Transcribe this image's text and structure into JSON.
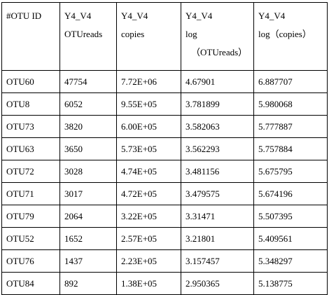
{
  "table": {
    "columns": [
      {
        "lines": [
          "#OTU ID"
        ]
      },
      {
        "lines": [
          "Y4_V4",
          "OTUreads"
        ]
      },
      {
        "lines": [
          "Y4_V4",
          "copies"
        ]
      },
      {
        "lines": [
          "Y4_V4",
          "log",
          "（OTUreads）"
        ]
      },
      {
        "lines": [
          "Y4_V4",
          "log（copies）"
        ]
      }
    ],
    "rows": [
      [
        "OTU60",
        "47754",
        "7.72E+06",
        "4.67901",
        "6.887707"
      ],
      [
        "OTU8",
        "6052",
        "9.55E+05",
        "3.781899",
        "5.980068"
      ],
      [
        "OTU73",
        "3820",
        "6.00E+05",
        "3.582063",
        "5.777887"
      ],
      [
        "OTU63",
        "3650",
        "5.73E+05",
        "3.562293",
        "5.757884"
      ],
      [
        "OTU72",
        "3028",
        "4.74E+05",
        "3.481156",
        "5.675795"
      ],
      [
        "OTU71",
        "3017",
        "4.72E+05",
        "3.479575",
        "5.674196"
      ],
      [
        "OTU79",
        "2064",
        "3.22E+05",
        "3.31471",
        "5.507395"
      ],
      [
        "OTU52",
        "1652",
        "2.57E+05",
        "3.21801",
        "5.409561"
      ],
      [
        "OTU76",
        "1437",
        "2.23E+05",
        "3.157457",
        "5.348297"
      ],
      [
        "OTU84",
        "892",
        "1.38E+05",
        "2.950365",
        "5.138775"
      ]
    ]
  }
}
